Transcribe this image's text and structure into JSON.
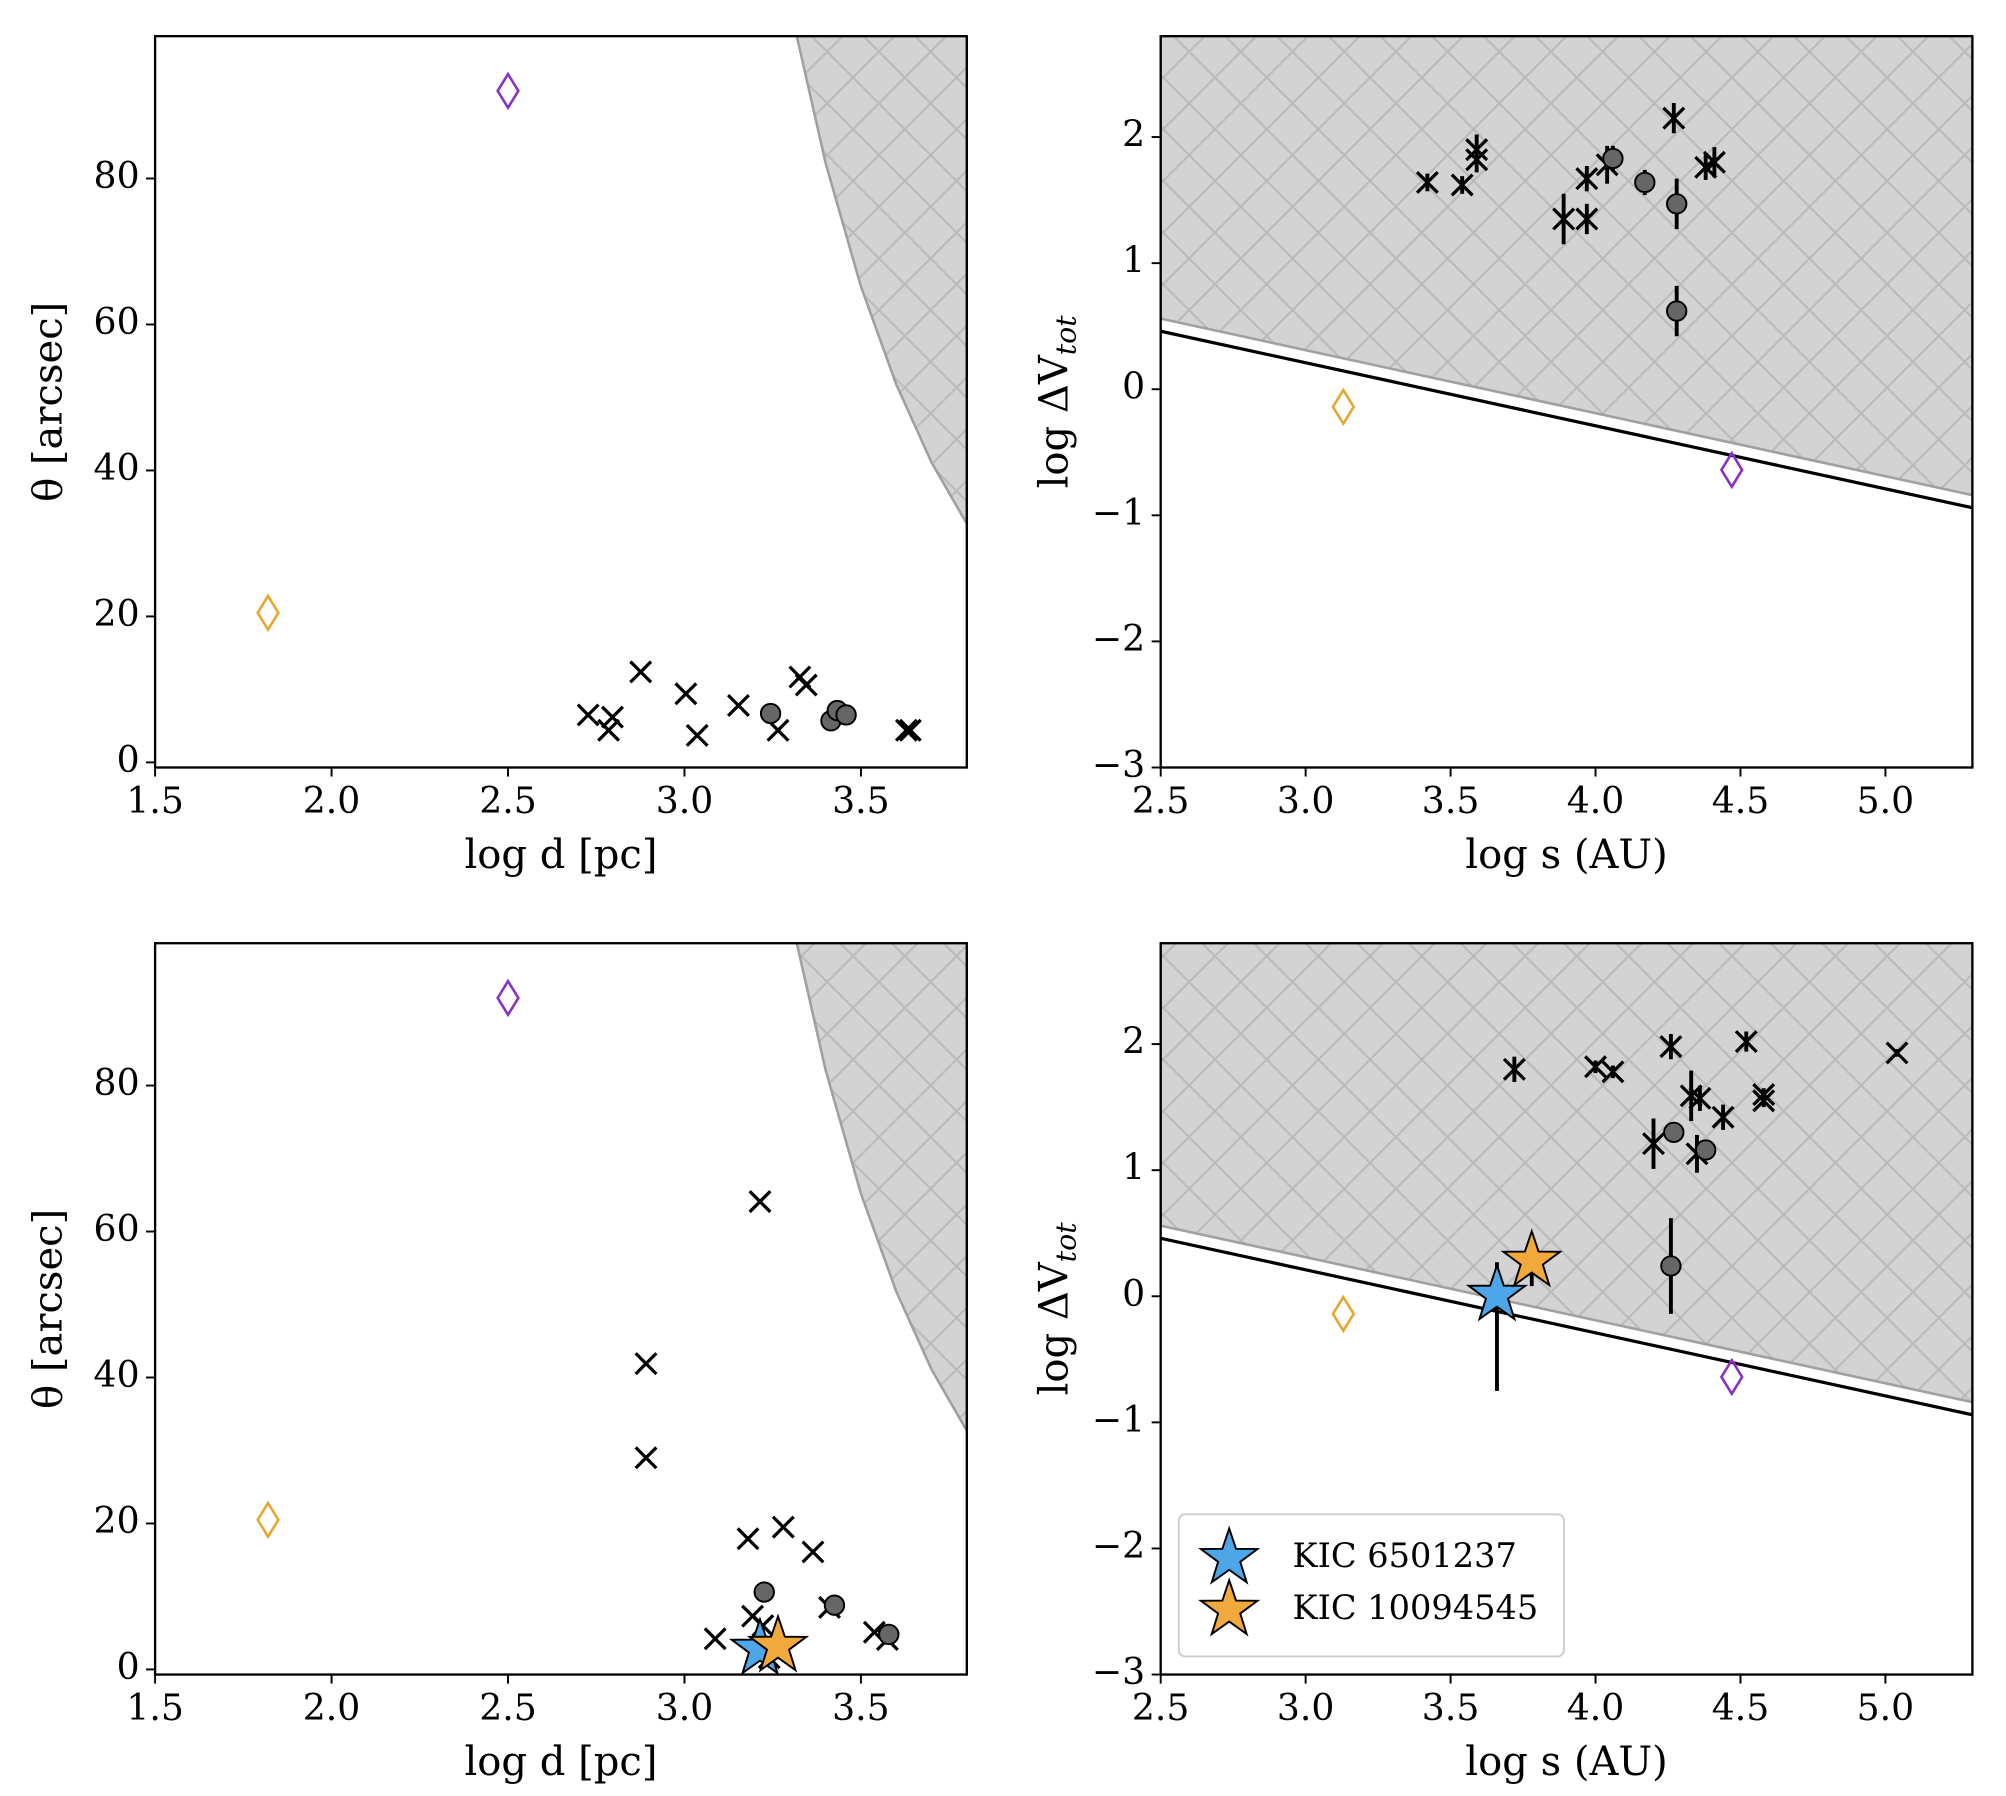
{
  "chart_data": [
    {
      "type": "scatter",
      "xlabel": "log d [pc]",
      "ylabel": {
        "text": "θ [arcsec]"
      },
      "xlim": [
        1.5,
        3.8
      ],
      "ylim": [
        -0.7,
        99.5
      ],
      "xticks": [
        1.5,
        {
          "value": 2,
          "label": "2.0"
        },
        2.5,
        {
          "value": 3,
          "label": "3.0"
        },
        3.5
      ],
      "yticks": [
        0,
        20,
        40,
        60,
        80
      ],
      "shade": {
        "x": [
          3.3,
          3.4,
          3.5,
          3.6,
          3.7,
          3.8
        ],
        "y": [
          103.4,
          82.1,
          65.2,
          51.8,
          41.1,
          32.7
        ]
      },
      "series": [
        {
          "marker": "x",
          "color": "#000000",
          "x": [
            2.727,
            2.796,
            2.785,
            2.876,
            3.004,
            3.036,
            3.153,
            3.265,
            3.327,
            3.345,
            3.629,
            3.64
          ],
          "values": [
            6.5,
            6.2,
            4.4,
            12.4,
            9.4,
            3.7,
            7.8,
            4.4,
            11.7,
            10.6,
            4.4,
            4.4
          ]
        },
        {
          "marker": "o",
          "color": "#666666",
          "x": [
            3.244,
            3.415,
            3.433,
            3.458
          ],
          "values": [
            6.7,
            5.7,
            7.1,
            6.5
          ]
        },
        {
          "marker": "diamond",
          "color": "#e8a530",
          "x": [
            1.82
          ],
          "values": [
            20.5
          ]
        },
        {
          "marker": "diamond",
          "color": "#8b2fc9",
          "x": [
            2.5
          ],
          "values": [
            92
          ]
        }
      ]
    },
    {
      "type": "scatter",
      "xlabel": "log s (AU)",
      "ylabel": {
        "text": "log ΔV",
        "sub": "tot"
      },
      "xlim": [
        2.5,
        5.3
      ],
      "ylim": [
        -3,
        2.8
      ],
      "xticks": [
        2.5,
        {
          "value": 3,
          "label": "3.0"
        },
        3.5,
        {
          "value": 4,
          "label": "4.0"
        },
        4.5,
        {
          "value": 5,
          "label": "5.0"
        }
      ],
      "yticks": [
        {
          "value": -3,
          "label": "−3"
        },
        {
          "value": -2,
          "label": "−2"
        },
        {
          "value": -1,
          "label": "−1"
        },
        0,
        1,
        2
      ],
      "shade": {
        "x": [
          2.5,
          5.3
        ],
        "y": [
          0.56,
          -0.84
        ]
      },
      "lines": [
        {
          "color": "#000000",
          "x": [
            2.5,
            5.3
          ],
          "y": [
            0.46,
            -0.94
          ]
        }
      ],
      "series": [
        {
          "marker": "x",
          "color": "#000000",
          "x": [
            3.42,
            3.54,
            3.59,
            3.59,
            3.89,
            3.97,
            3.97,
            4.04,
            4.27,
            4.38,
            4.41
          ],
          "values": [
            1.64,
            1.62,
            1.9,
            1.82,
            1.35,
            1.35,
            1.67,
            1.78,
            2.15,
            1.76,
            1.8
          ],
          "yerr": [
            0.07,
            0.07,
            0.12,
            0.1,
            0.2,
            0.12,
            0.1,
            0.15,
            0.12,
            0.1,
            0.12
          ]
        },
        {
          "marker": "o",
          "color": "#666666",
          "x": [
            4.06,
            4.17,
            4.28,
            4.28
          ],
          "values": [
            1.83,
            1.64,
            1.47,
            0.62
          ],
          "yerr": [
            0.1,
            0.1,
            0.2,
            0.2
          ]
        },
        {
          "marker": "diamond",
          "color": "#e8a530",
          "x": [
            3.13
          ],
          "values": [
            -0.14
          ]
        },
        {
          "marker": "diamond",
          "color": "#8b2fc9",
          "x": [
            4.47
          ],
          "values": [
            -0.64
          ]
        }
      ]
    },
    {
      "type": "scatter",
      "xlabel": "log d [pc]",
      "ylabel": {
        "text": "θ [arcsec]"
      },
      "xlim": [
        1.5,
        3.8
      ],
      "ylim": [
        -0.7,
        99.5
      ],
      "xticks": [
        1.5,
        {
          "value": 2,
          "label": "2.0"
        },
        2.5,
        {
          "value": 3,
          "label": "3.0"
        },
        3.5
      ],
      "yticks": [
        0,
        20,
        40,
        60,
        80
      ],
      "shade": {
        "x": [
          3.3,
          3.4,
          3.5,
          3.6,
          3.7,
          3.8
        ],
        "y": [
          103.4,
          82.1,
          65.2,
          51.8,
          41.1,
          32.7
        ]
      },
      "series": [
        {
          "marker": "x",
          "color": "#000000",
          "x": [
            3.214,
            2.891,
            2.891,
            3.18,
            3.28,
            3.364,
            3.087,
            3.193,
            3.222,
            3.411,
            3.538,
            3.575,
            3.24
          ],
          "values": [
            64.1,
            41.9,
            29.0,
            17.9,
            19.5,
            16.1,
            4.2,
            7.3,
            6.0,
            8.5,
            5.1,
            4.1,
            1.6
          ]
        },
        {
          "marker": "o",
          "color": "#666666",
          "x": [
            3.226,
            3.425,
            3.579
          ],
          "values": [
            10.6,
            8.8,
            4.8
          ]
        },
        {
          "marker": "diamond",
          "color": "#e8a530",
          "x": [
            1.82
          ],
          "values": [
            20.5
          ]
        },
        {
          "marker": "diamond",
          "color": "#8b2fc9",
          "x": [
            2.5
          ],
          "values": [
            92
          ]
        },
        {
          "marker": "star",
          "color": "#4da6e8",
          "x": [
            3.214
          ],
          "values": [
            2.8
          ]
        },
        {
          "marker": "star",
          "color": "#f2a93b",
          "x": [
            3.265
          ],
          "values": [
            3.2
          ]
        }
      ]
    },
    {
      "type": "scatter",
      "xlabel": "log s (AU)",
      "ylabel": {
        "text": "log ΔV",
        "sub": "tot"
      },
      "xlim": [
        2.5,
        5.3
      ],
      "ylim": [
        -3,
        2.8
      ],
      "xticks": [
        2.5,
        {
          "value": 3,
          "label": "3.0"
        },
        3.5,
        {
          "value": 4,
          "label": "4.0"
        },
        4.5,
        {
          "value": 5,
          "label": "5.0"
        }
      ],
      "yticks": [
        {
          "value": -3,
          "label": "−3"
        },
        {
          "value": -2,
          "label": "−2"
        },
        {
          "value": -1,
          "label": "−1"
        },
        0,
        1,
        2
      ],
      "shade": {
        "x": [
          2.5,
          5.3
        ],
        "y": [
          0.56,
          -0.84
        ]
      },
      "lines": [
        {
          "color": "#000000",
          "x": [
            2.5,
            5.3
          ],
          "y": [
            0.46,
            -0.94
          ]
        }
      ],
      "legend": "lower left",
      "series": [
        {
          "marker": "x",
          "color": "#000000",
          "x": [
            3.72,
            4.0,
            4.06,
            4.26,
            4.52,
            5.04,
            4.58,
            4.58,
            4.44,
            4.33,
            4.36,
            4.35,
            4.2
          ],
          "values": [
            1.8,
            1.82,
            1.78,
            1.98,
            2.02,
            1.93,
            1.6,
            1.55,
            1.42,
            1.59,
            1.57,
            1.13,
            1.21
          ],
          "yerr": [
            0.1,
            0.05,
            0.05,
            0.1,
            0.08,
            0.03,
            0.05,
            0.05,
            0.1,
            0.2,
            0.1,
            0.15,
            0.2
          ]
        },
        {
          "marker": "o",
          "color": "#666666",
          "x": [
            4.27,
            4.38,
            4.26
          ],
          "values": [
            1.3,
            1.16,
            0.24
          ],
          "yerr": [
            0.05,
            0.05,
            0.38
          ]
        },
        {
          "marker": "diamond",
          "color": "#e8a530",
          "x": [
            3.13
          ],
          "values": [
            -0.14
          ]
        },
        {
          "marker": "diamond",
          "color": "#8b2fc9",
          "x": [
            4.47
          ],
          "values": [
            -0.64
          ]
        },
        {
          "name": "KIC 6501237",
          "marker": "star",
          "color": "#4da6e8",
          "x": [
            3.66
          ],
          "values": [
            0.01
          ],
          "yerr": [
            [
              0.76,
              0.26
            ]
          ]
        },
        {
          "name": "KIC 10094545",
          "marker": "star",
          "color": "#f2a93b",
          "x": [
            3.78
          ],
          "values": [
            0.28
          ],
          "yerr": [
            [
              0.2,
              0.2
            ]
          ]
        }
      ]
    }
  ]
}
